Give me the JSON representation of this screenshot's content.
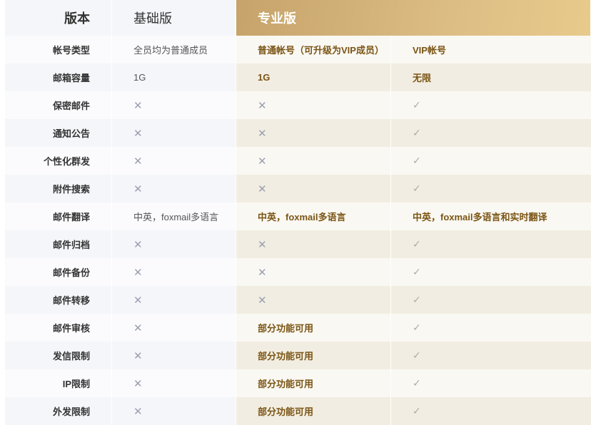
{
  "header": {
    "label": "版本",
    "basic": "基础版",
    "pro": "专业版"
  },
  "colors": {
    "pro_header_start": "#c6a36a",
    "pro_header_end": "#e8ca8c",
    "pro_text": "#7a5514"
  },
  "rows": [
    {
      "label": "帐号类型",
      "basic": "全员均为普通成员",
      "pro1": "普通帐号（可升级为VIP成员）",
      "pro2": "VIP帐号"
    },
    {
      "label": "邮箱容量",
      "basic": "1G",
      "pro1": "1G",
      "pro2": "无限"
    },
    {
      "label": "保密邮件",
      "basic": "x",
      "pro1": "x",
      "pro2": "check"
    },
    {
      "label": "通知公告",
      "basic": "x",
      "pro1": "x",
      "pro2": "check"
    },
    {
      "label": "个性化群发",
      "basic": "x",
      "pro1": "x",
      "pro2": "check"
    },
    {
      "label": "附件搜索",
      "basic": "x",
      "pro1": "x",
      "pro2": "check"
    },
    {
      "label": "邮件翻译",
      "basic": "中英，foxmail多语言",
      "pro1": "中英，foxmail多语言",
      "pro2": "中英，foxmail多语言和实时翻译"
    },
    {
      "label": "邮件归档",
      "basic": "x",
      "pro1": "x",
      "pro2": "check"
    },
    {
      "label": "邮件备份",
      "basic": "x",
      "pro1": "x",
      "pro2": "check"
    },
    {
      "label": "邮件转移",
      "basic": "x",
      "pro1": "x",
      "pro2": "check"
    },
    {
      "label": "邮件审核",
      "basic": "x",
      "pro1": "部分功能可用",
      "pro2": "check"
    },
    {
      "label": "发信限制",
      "basic": "x",
      "pro1": "部分功能可用",
      "pro2": "check"
    },
    {
      "label": "IP限制",
      "basic": "x",
      "pro1": "部分功能可用",
      "pro2": "check"
    },
    {
      "label": "外发限制",
      "basic": "x",
      "pro1": "部分功能可用",
      "pro2": "check"
    }
  ]
}
